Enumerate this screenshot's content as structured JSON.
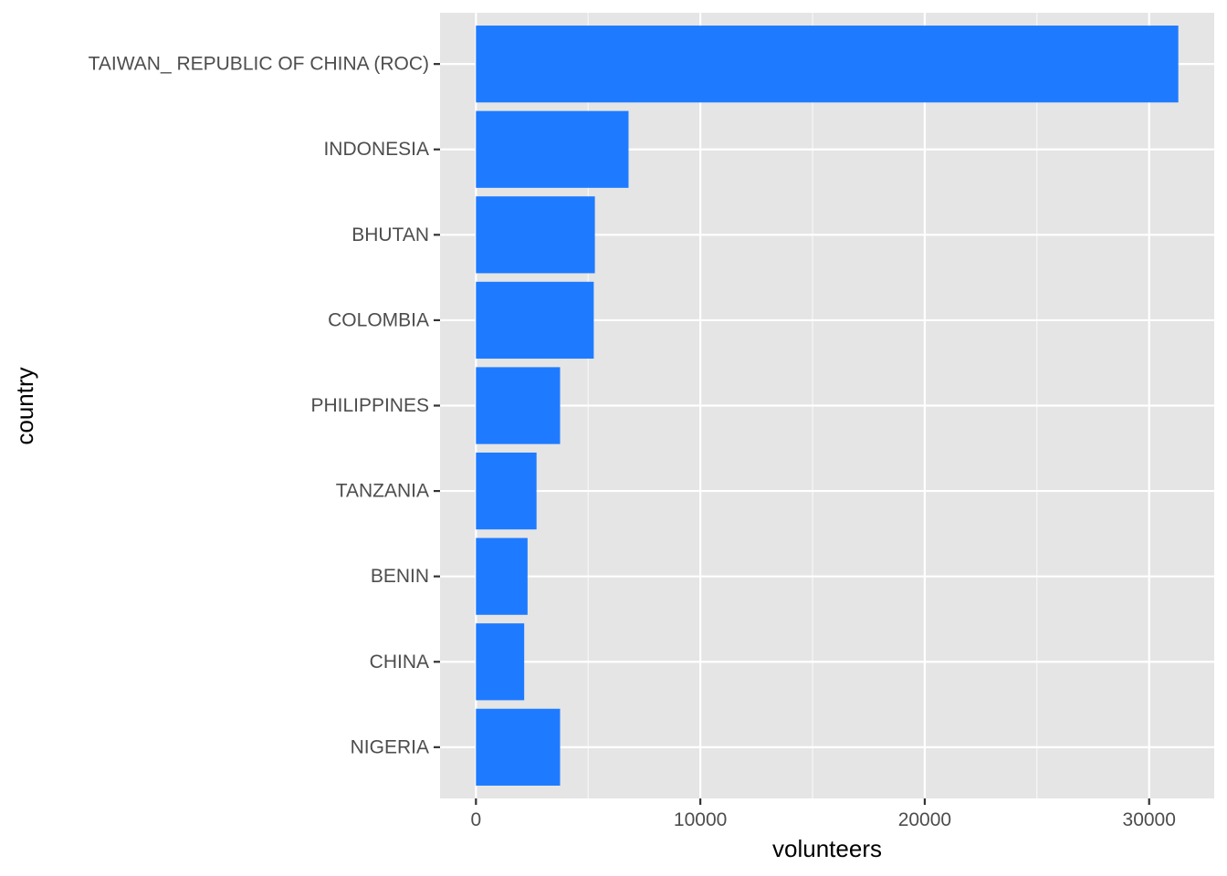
{
  "colors": {
    "panel": "#e5e5e5",
    "grid_major": "#ffffff",
    "bar": "#1e7bff",
    "tick": "#333333"
  },
  "chart_data": {
    "type": "bar",
    "orientation": "horizontal",
    "xlabel": "volunteers",
    "ylabel": "country",
    "xlim": [
      -1600,
      32900
    ],
    "x_ticks": [
      0,
      10000,
      20000,
      30000
    ],
    "x_tick_labels": [
      "0",
      "10000",
      "20000",
      "30000"
    ],
    "grid": true,
    "categories": [
      "TAIWAN_ REPUBLIC OF CHINA (ROC)",
      "INDONESIA",
      "BHUTAN",
      "COLOMBIA",
      "PHILIPPINES",
      "TANZANIA",
      "BENIN",
      "CHINA",
      "NIGERIA"
    ],
    "values": [
      31300,
      6800,
      5300,
      5250,
      3750,
      2700,
      2300,
      2150,
      3750
    ]
  }
}
